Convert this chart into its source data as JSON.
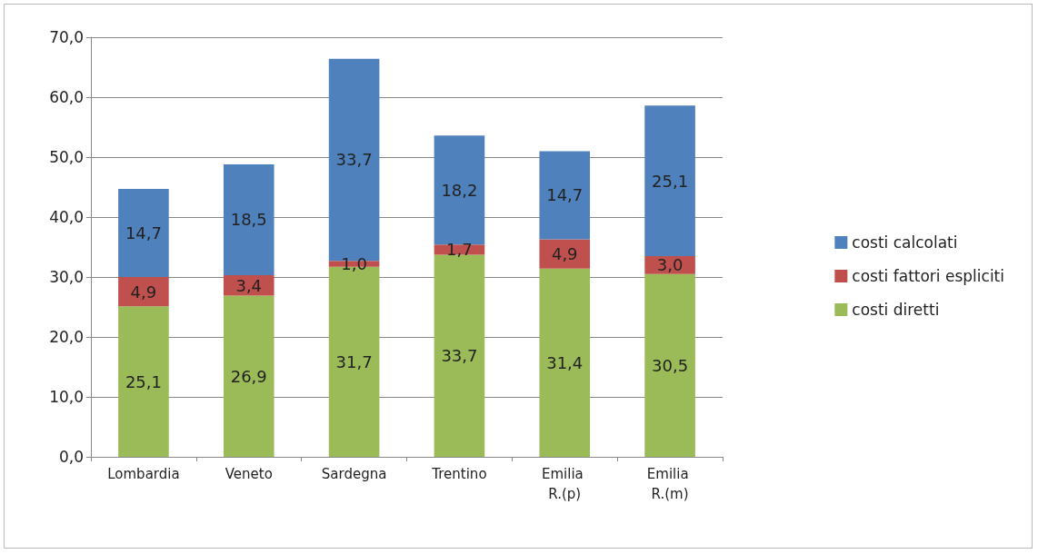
{
  "chart_data": {
    "type": "bar",
    "stacked": true,
    "categories": [
      "Lombardia",
      "Veneto",
      "Sardegna",
      "Trentino",
      "Emilia R.(p)",
      "Emilia R.(m)"
    ],
    "series": [
      {
        "name": "costi diretti",
        "color": "#9bbb59",
        "values": [
          25.1,
          26.9,
          31.7,
          33.7,
          31.4,
          30.5
        ],
        "value_labels": [
          "25,1",
          "26,9",
          "31,7",
          "33,7",
          "31,4",
          "30,5"
        ]
      },
      {
        "name": "costi fattori espliciti",
        "color": "#c0504d",
        "values": [
          4.9,
          3.4,
          1.0,
          1.7,
          4.9,
          3.0
        ],
        "value_labels": [
          "4,9",
          "3,4",
          "1,0",
          "1,7",
          "4,9",
          "3,0"
        ]
      },
      {
        "name": "costi calcolati",
        "color": "#4f81bd",
        "values": [
          14.7,
          18.5,
          33.7,
          18.2,
          14.7,
          25.1
        ],
        "value_labels": [
          "14,7",
          "18,5",
          "33,7",
          "18,2",
          "14,7",
          "25,1"
        ]
      }
    ],
    "ylim": [
      0,
      70
    ],
    "yticks": [
      {
        "value": 0,
        "label": "0,0"
      },
      {
        "value": 10,
        "label": "10,0"
      },
      {
        "value": 20,
        "label": "20,0"
      },
      {
        "value": 30,
        "label": "30,0"
      },
      {
        "value": 40,
        "label": "40,0"
      },
      {
        "value": 50,
        "label": "50,0"
      },
      {
        "value": 60,
        "label": "60,0"
      },
      {
        "value": 70,
        "label": "70,0"
      }
    ],
    "grid": "y",
    "legend": "right"
  }
}
